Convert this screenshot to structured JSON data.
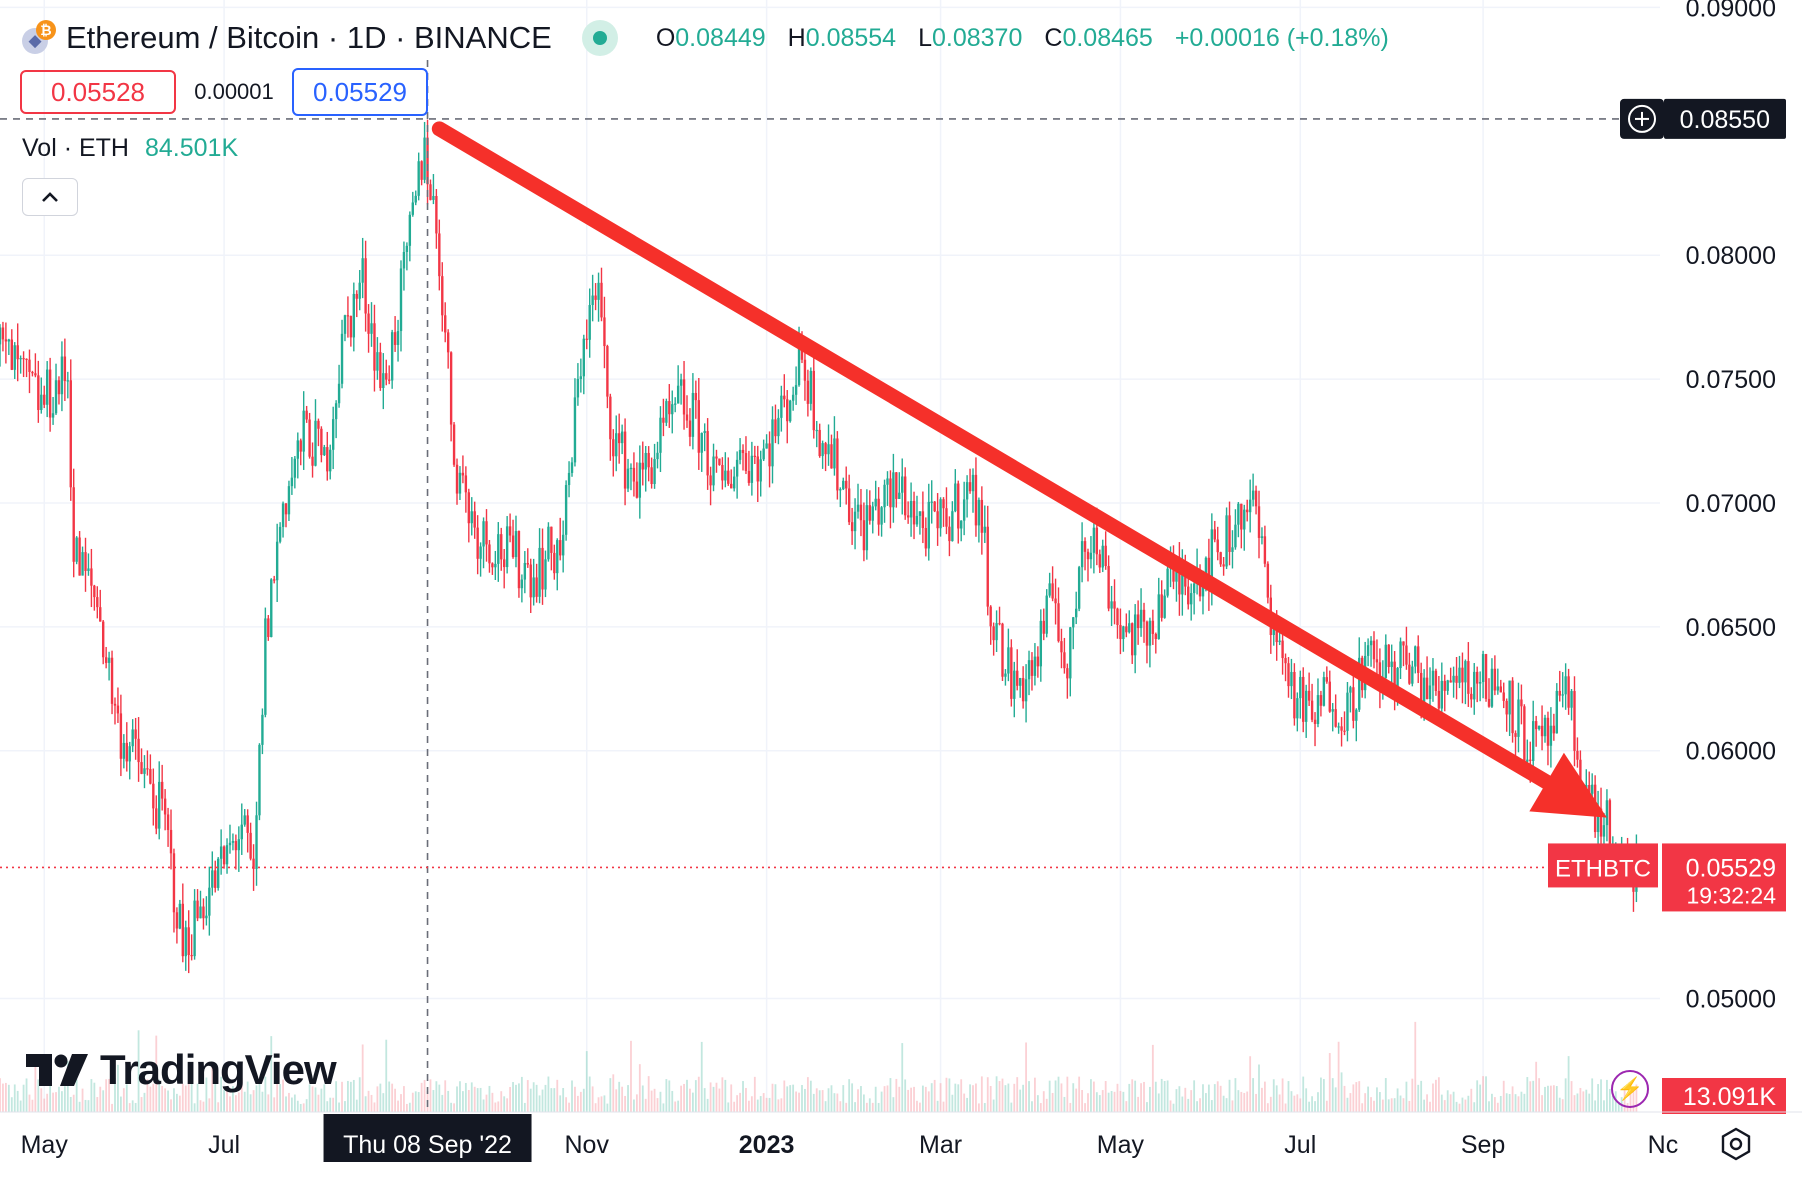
{
  "header": {
    "title": "Ethereum / Bitcoin · 1D · BINANCE",
    "ohlc": {
      "o_label": "O",
      "o_value": "0.08449",
      "h_label": "H",
      "h_value": "0.08554",
      "l_label": "L",
      "l_value": "0.08370",
      "c_label": "C",
      "c_value": "0.08465",
      "change": "+0.00016 (+0.18%)"
    }
  },
  "trade": {
    "sell_price": "0.05528",
    "spread": "0.00001",
    "buy_price": "0.05529"
  },
  "volume_legend": {
    "label": "Vol · ETH",
    "value": "84.501K"
  },
  "branding": {
    "logo_text": "TradingView"
  },
  "icons": [
    "btc-icon",
    "eth-icon",
    "live-status-icon",
    "chevron-up-icon",
    "crosshair-plus-icon",
    "lightning-icon",
    "settings-icon"
  ],
  "colors": {
    "up": "#22ab94",
    "down": "#f23645",
    "arrow": "#f5302a",
    "text": "#131722",
    "grid": "#f0f3fa"
  },
  "chart_data": {
    "type": "candlestick",
    "symbol": "ETHBTC",
    "y_ticks": [
      "0.05000",
      "0.06000",
      "0.06500",
      "0.07000",
      "0.07500",
      "0.08000",
      "0.09000"
    ],
    "y_range": [
      0.0455,
      0.0903
    ],
    "x_ticks": [
      "May",
      "Jul",
      "Nov",
      "2023",
      "Mar",
      "May",
      "Jul",
      "Sep",
      "Nc"
    ],
    "x_range": [
      "2022-04-16",
      "2023-10-31"
    ],
    "crosshair": {
      "date": "Thu 08 Sep '22",
      "x_date": "2022-09-08",
      "price": "0.08550"
    },
    "last_price": {
      "symbol": "ETHBTC",
      "price": "0.05529",
      "countdown": "19:32:24"
    },
    "volume_last": "13.091K",
    "trend_arrow": {
      "from": [
        "2022-09-12",
        0.0851
      ],
      "to": [
        "2023-10-13",
        0.0573
      ]
    },
    "price_path": [
      [
        "2022-04-16",
        0.0764
      ],
      [
        "2022-05-01",
        0.074
      ],
      [
        "2022-05-10",
        0.0752
      ],
      [
        "2022-05-12",
        0.068
      ],
      [
        "2022-05-20",
        0.066
      ],
      [
        "2022-05-27",
        0.061
      ],
      [
        "2022-06-05",
        0.059
      ],
      [
        "2022-06-12",
        0.057
      ],
      [
        "2022-06-18",
        0.052
      ],
      [
        "2022-06-25",
        0.054
      ],
      [
        "2022-07-01",
        0.0552
      ],
      [
        "2022-07-08",
        0.057
      ],
      [
        "2022-07-12",
        0.0545
      ],
      [
        "2022-07-16",
        0.0645
      ],
      [
        "2022-07-22",
        0.07
      ],
      [
        "2022-07-30",
        0.073
      ],
      [
        "2022-08-05",
        0.0715
      ],
      [
        "2022-08-12",
        0.077
      ],
      [
        "2022-08-18",
        0.079
      ],
      [
        "2022-08-25",
        0.0745
      ],
      [
        "2022-09-01",
        0.079
      ],
      [
        "2022-09-08",
        0.0846
      ],
      [
        "2022-09-13",
        0.08
      ],
      [
        "2022-09-18",
        0.072
      ],
      [
        "2022-09-25",
        0.069
      ],
      [
        "2022-10-05",
        0.068
      ],
      [
        "2022-10-15",
        0.0672
      ],
      [
        "2022-10-25",
        0.0685
      ],
      [
        "2022-11-01",
        0.077
      ],
      [
        "2022-11-06",
        0.0785
      ],
      [
        "2022-11-09",
        0.074
      ],
      [
        "2022-11-13",
        0.072
      ],
      [
        "2022-11-20",
        0.0708
      ],
      [
        "2022-11-27",
        0.0725
      ],
      [
        "2022-12-04",
        0.074
      ],
      [
        "2022-12-10",
        0.073
      ],
      [
        "2022-12-17",
        0.0705
      ],
      [
        "2022-12-24",
        0.072
      ],
      [
        "2022-12-31",
        0.0718
      ],
      [
        "2023-01-07",
        0.0735
      ],
      [
        "2023-01-14",
        0.076
      ],
      [
        "2023-01-20",
        0.073
      ],
      [
        "2023-01-27",
        0.071
      ],
      [
        "2023-02-03",
        0.069
      ],
      [
        "2023-02-10",
        0.07
      ],
      [
        "2023-02-17",
        0.0705
      ],
      [
        "2023-02-24",
        0.069
      ],
      [
        "2023-03-03",
        0.069
      ],
      [
        "2023-03-10",
        0.0705
      ],
      [
        "2023-03-15",
        0.07
      ],
      [
        "2023-03-20",
        0.065
      ],
      [
        "2023-03-27",
        0.0625
      ],
      [
        "2023-04-03",
        0.0635
      ],
      [
        "2023-04-10",
        0.0665
      ],
      [
        "2023-04-14",
        0.0625
      ],
      [
        "2023-04-19",
        0.069
      ],
      [
        "2023-04-25",
        0.068
      ],
      [
        "2023-05-02",
        0.065
      ],
      [
        "2023-05-10",
        0.0645
      ],
      [
        "2023-05-17",
        0.0665
      ],
      [
        "2023-05-24",
        0.067
      ],
      [
        "2023-05-31",
        0.0675
      ],
      [
        "2023-06-07",
        0.0685
      ],
      [
        "2023-06-13",
        0.07
      ],
      [
        "2023-06-17",
        0.0695
      ],
      [
        "2023-06-20",
        0.067
      ],
      [
        "2023-06-25",
        0.064
      ],
      [
        "2023-07-01",
        0.062
      ],
      [
        "2023-07-06",
        0.0612
      ],
      [
        "2023-07-12",
        0.0625
      ],
      [
        "2023-07-18",
        0.0615
      ],
      [
        "2023-07-23",
        0.0635
      ],
      [
        "2023-07-30",
        0.0632
      ],
      [
        "2023-08-06",
        0.0635
      ],
      [
        "2023-08-13",
        0.0628
      ],
      [
        "2023-08-18",
        0.062
      ],
      [
        "2023-08-22",
        0.0635
      ],
      [
        "2023-08-28",
        0.063
      ],
      [
        "2023-09-04",
        0.0628
      ],
      [
        "2023-09-10",
        0.0625
      ],
      [
        "2023-09-16",
        0.0605
      ],
      [
        "2023-09-22",
        0.06
      ],
      [
        "2023-09-28",
        0.0615
      ],
      [
        "2023-10-01",
        0.062
      ],
      [
        "2023-10-05",
        0.059
      ],
      [
        "2023-10-10",
        0.0575
      ],
      [
        "2023-10-14",
        0.057
      ],
      [
        "2023-10-17",
        0.0553
      ],
      [
        "2023-10-21",
        0.0551
      ],
      [
        "2023-10-23",
        0.0553
      ]
    ]
  }
}
